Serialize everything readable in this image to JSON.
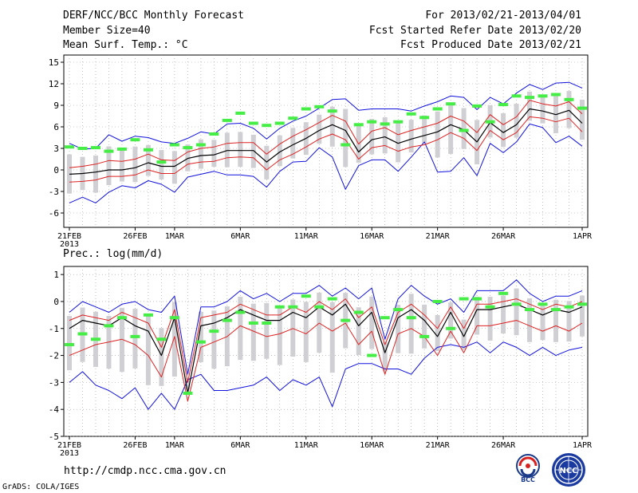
{
  "header": {
    "title": "DERF/NCC/BCC Monthly Forecast",
    "member_size": "Member Size=40",
    "forecast_period": "For 2013/02/21-2013/04/01",
    "fcst_started": "Fcst Started Refer Date 2013/02/20",
    "fcst_produced": "Fcst Produced Date 2013/02/21"
  },
  "footer": {
    "url": "http://cmdp.ncc.cma.gov.cn",
    "credit": "GrADS: COLA/IGES",
    "logo_bcc": "BCC",
    "logo_ncc": "NCC"
  },
  "colors": {
    "mean": "#000000",
    "spread": "#dd2222",
    "extreme": "#1111dd",
    "box": "#d0d0d4",
    "obs": "#44ee44"
  },
  "chart_data": [
    {
      "type": "line",
      "title": "Mean Surf. Temp.: °C",
      "x_tick_labels": [
        "21FEB",
        "26FEB",
        "1MAR",
        "6MAR",
        "11MAR",
        "16MAR",
        "21MAR",
        "26MAR",
        "1APR"
      ],
      "x_year_label": "2013",
      "x_tick_days": [
        1,
        6,
        9,
        14,
        19,
        24,
        29,
        34,
        40
      ],
      "days": 40,
      "ylim": [
        -8,
        16
      ],
      "yticks": [
        -6,
        -3,
        0,
        3,
        6,
        9,
        12,
        15
      ],
      "series": [
        {
          "name": "ensemble mean",
          "values": [
            -0.6,
            -0.5,
            -0.3,
            0,
            0,
            0.3,
            1,
            0.5,
            0.5,
            1.6,
            2,
            2.1,
            2.7,
            2.7,
            2.7,
            1.1,
            2.5,
            3.5,
            4.4,
            5.5,
            6.3,
            5.5,
            2.5,
            4.2,
            4.6,
            3.7,
            4.3,
            4.8,
            5.3,
            6.3,
            5.6,
            3.9,
            6.6,
            5.2,
            6.3,
            8.5,
            8.2,
            7.7,
            8.3,
            6.5
          ]
        },
        {
          "name": "mean + spread",
          "values": [
            0.3,
            0.5,
            0.8,
            1.3,
            1.2,
            1.5,
            2.2,
            1.4,
            1.3,
            2.5,
            3,
            3.2,
            3.7,
            3.8,
            3.8,
            2.2,
            3.6,
            4.7,
            5.6,
            6.6,
            7.6,
            6.8,
            3.6,
            5.4,
            5.9,
            4.9,
            5.5,
            6,
            6.5,
            7.5,
            6.8,
            5.2,
            7.7,
            6.3,
            7.4,
            9.7,
            9.2,
            8.9,
            9.5,
            7.8
          ]
        },
        {
          "name": "mean - spread",
          "values": [
            -1.7,
            -1.6,
            -1.4,
            -0.9,
            -0.9,
            -0.7,
            0,
            -0.5,
            -0.5,
            0.8,
            1.1,
            1.2,
            1.7,
            1.8,
            1.7,
            0,
            1.4,
            2.2,
            3.2,
            4.3,
            5,
            4.2,
            1.5,
            3.1,
            3.4,
            2.6,
            3.2,
            3.5,
            4.2,
            5.2,
            4.4,
            2.7,
            5.5,
            4.2,
            5.2,
            7.4,
            7.2,
            6.7,
            7.2,
            5.3
          ]
        },
        {
          "name": "ensemble max",
          "values": [
            3.7,
            2.9,
            3,
            4.9,
            4,
            4.7,
            4.5,
            3.9,
            3.7,
            4.4,
            5.3,
            5,
            6.4,
            6.5,
            5.8,
            4.3,
            5.8,
            6.8,
            7.5,
            8.6,
            9.8,
            9.9,
            8.3,
            8.5,
            8.5,
            8.5,
            8.2,
            8.9,
            9.5,
            10.3,
            10.1,
            8.4,
            10.1,
            9.2,
            10.7,
            11.9,
            11.2,
            12.1,
            12.2,
            11.4
          ]
        },
        {
          "name": "ensemble min",
          "values": [
            -4.6,
            -3.8,
            -4.6,
            -3.1,
            -2.2,
            -2.5,
            -1.5,
            -2,
            -3.1,
            -1,
            -0.6,
            -0.2,
            -0.7,
            -0.7,
            -0.9,
            -2.4,
            -0.2,
            1.1,
            1.2,
            3.1,
            1.8,
            -2.7,
            0.6,
            1.4,
            1.4,
            -0.2,
            1.8,
            3.9,
            -0.3,
            -0.2,
            1.7,
            -0.8,
            3.7,
            2.4,
            3.9,
            6.4,
            5.9,
            3.8,
            4.7,
            3.3
          ]
        },
        {
          "name": "observed/analysis",
          "values": [
            3.2,
            3,
            3.1,
            2.6,
            2.9,
            4.2,
            2.8,
            1.1,
            3.5,
            3.1,
            3.5,
            5,
            6.9,
            7.9,
            6.5,
            6.2,
            6.5,
            7.2,
            8.5,
            8.8,
            8.2,
            3.5,
            6.3,
            6.7,
            6.4,
            6.7,
            7.8,
            7.3,
            8.5,
            9.2,
            5.5,
            8.9,
            6.7,
            9.1,
            10.3,
            10.1,
            10.3,
            10.5,
            9.8,
            8.6
          ]
        }
      ]
    },
    {
      "type": "line",
      "title": "Prec.: log(mm/d)",
      "x_tick_labels": [
        "21FEB",
        "26FEB",
        "1MAR",
        "6MAR",
        "11MAR",
        "16MAR",
        "21MAR",
        "26MAR",
        "1APR"
      ],
      "x_year_label": "2013",
      "x_tick_days": [
        1,
        6,
        9,
        14,
        19,
        24,
        29,
        34,
        40
      ],
      "days": 40,
      "ylim": [
        -5,
        1.3
      ],
      "yticks": [
        -5,
        -4,
        -3,
        -2,
        -1,
        0,
        1
      ],
      "series": [
        {
          "name": "ensemble mean",
          "values": [
            -1,
            -0.7,
            -0.8,
            -0.9,
            -0.6,
            -0.9,
            -1.1,
            -2,
            -0.6,
            -3.4,
            -0.9,
            -0.8,
            -0.6,
            -0.3,
            -0.5,
            -0.7,
            -0.7,
            -0.4,
            -0.6,
            -0.2,
            -0.5,
            -0.1,
            -0.9,
            -0.4,
            -1.9,
            -0.6,
            -0.3,
            -0.7,
            -1.3,
            -0.4,
            -1.3,
            -0.3,
            -0.3,
            -0.2,
            -0.1,
            -0.3,
            -0.5,
            -0.3,
            -0.4,
            -0.2
          ]
        },
        {
          "name": "mean + spread",
          "values": [
            -0.7,
            -0.5,
            -0.6,
            -0.7,
            -0.4,
            -0.6,
            -0.8,
            -1.7,
            -0.3,
            -3,
            -0.6,
            -0.5,
            -0.4,
            -0.1,
            -0.3,
            -0.5,
            -0.5,
            -0.2,
            -0.4,
            0,
            -0.3,
            0.1,
            -0.6,
            -0.2,
            -1.6,
            -0.4,
            -0.1,
            -0.5,
            -1,
            -0.2,
            -1,
            -0.1,
            -0.1,
            0,
            0.1,
            -0.1,
            -0.3,
            -0.1,
            -0.2,
            0
          ]
        },
        {
          "name": "mean - spread",
          "values": [
            -2,
            -1.8,
            -1.6,
            -1.5,
            -1.4,
            -1.6,
            -2,
            -2.8,
            -1.3,
            -3.7,
            -1.7,
            -1.5,
            -1.3,
            -0.9,
            -1.1,
            -1.3,
            -1.2,
            -1,
            -1.2,
            -0.8,
            -1.1,
            -0.8,
            -1.6,
            -1.1,
            -2.7,
            -1.2,
            -1,
            -1.3,
            -2,
            -1.1,
            -1.9,
            -0.9,
            -0.9,
            -0.8,
            -0.7,
            -0.9,
            -1.1,
            -0.9,
            -1.1,
            -0.8
          ]
        },
        {
          "name": "ensemble max",
          "values": [
            -0.4,
            0,
            -0.2,
            -0.4,
            -0.1,
            0,
            -0.3,
            -0.4,
            0.2,
            -2.7,
            -0.2,
            -0.2,
            0,
            0.4,
            0.1,
            0.3,
            0,
            0.3,
            0.3,
            0.6,
            0.2,
            0.5,
            0.1,
            0.5,
            -1.4,
            0.1,
            0.6,
            0.2,
            -0.1,
            0.1,
            -0.4,
            0.4,
            0.4,
            0.4,
            0.8,
            0.3,
            0,
            0.2,
            0.2,
            0.4
          ]
        },
        {
          "name": "ensemble min",
          "values": [
            -3,
            -2.6,
            -3.1,
            -3.3,
            -3.6,
            -3.2,
            -4,
            -3.4,
            -4,
            -2.9,
            -2.7,
            -3.3,
            -3.3,
            -3.2,
            -3.1,
            -2.8,
            -3.3,
            -2.9,
            -3.1,
            -2.8,
            -3.9,
            -2.5,
            -2.3,
            -2.3,
            -2.5,
            -2.5,
            -2.7,
            -2.1,
            -1.7,
            -1.6,
            -1.7,
            -1.5,
            -1.9,
            -1.5,
            -1.7,
            -2,
            -1.7,
            -2,
            -1.8,
            -1.7
          ]
        },
        {
          "name": "observed/analysis",
          "values": [
            -1.6,
            -1.2,
            -1.4,
            -0.9,
            -0.6,
            -1.3,
            -0.5,
            -1.4,
            -0.6,
            -3.4,
            -1.5,
            -1.1,
            -0.7,
            -0.4,
            -0.8,
            -0.8,
            -0.2,
            -0.2,
            0.2,
            -0.2,
            0.1,
            -0.7,
            -0.4,
            -2,
            -0.6,
            -0.3,
            -0.6,
            -1.3,
            0,
            -1,
            0.1,
            0.1,
            -0.2,
            0.3,
            -0.1,
            -0.3,
            -0.1,
            -0.3,
            -0.2,
            -0.1
          ]
        }
      ]
    }
  ]
}
